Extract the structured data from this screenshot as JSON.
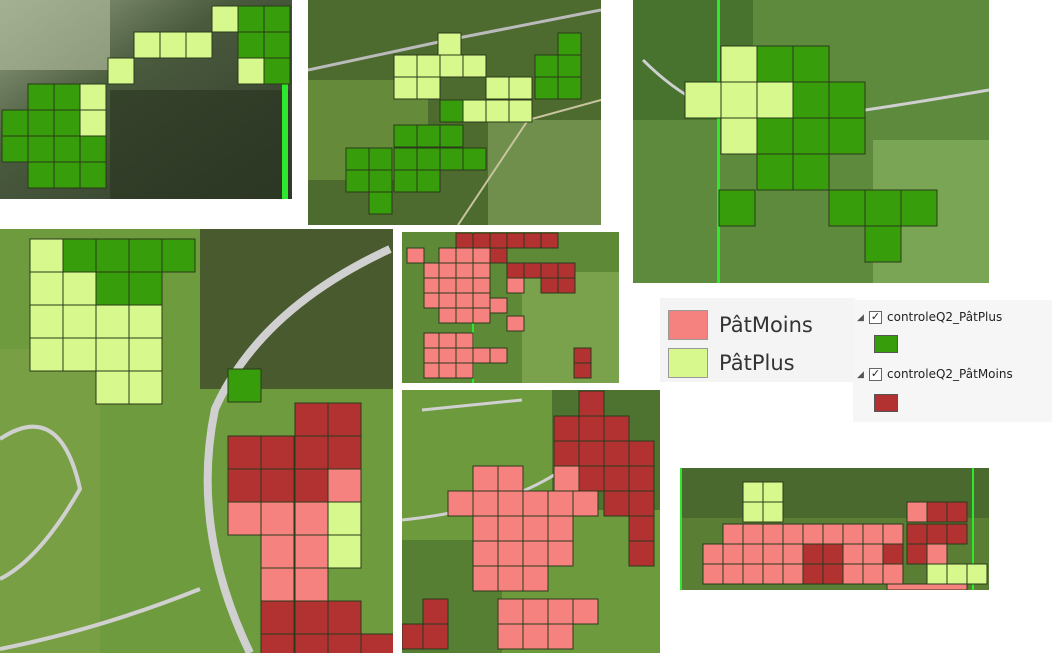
{
  "colors": {
    "pat_plus_legend": "#d6f88c",
    "pat_moins_legend": "#f6827f",
    "q2_pat_plus": "#389d0b",
    "q2_pat_moins": "#b23131"
  },
  "legend": {
    "items": [
      {
        "label": "PâtMoins",
        "color": "#f6827f"
      },
      {
        "label": "PâtPlus",
        "color": "#d6f88c"
      }
    ]
  },
  "layers": [
    {
      "name": "controleQ2_PâtPlus",
      "checked": true,
      "symbol_color": "#389d0b"
    },
    {
      "name": "controleQ2_PâtMoins",
      "checked": true,
      "symbol_color": "#b23131"
    }
  ]
}
